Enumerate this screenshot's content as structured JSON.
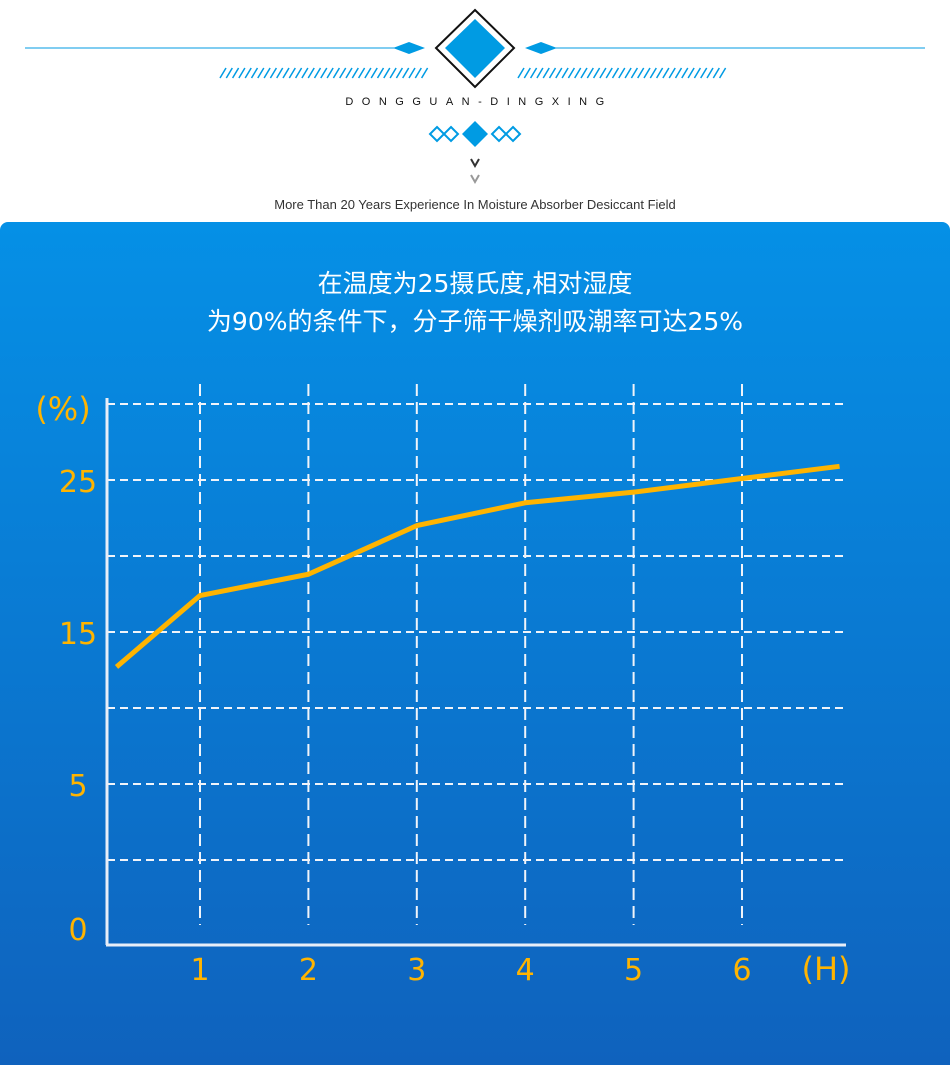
{
  "header": {
    "brand": "DONGGUAN-DINGXING",
    "tagline": "More Than 20 Years Experience In Moisture Absorber Desiccant Field",
    "accent": "#009be3"
  },
  "panel": {
    "title_line1": "在温度为25摄氏度,相对湿度",
    "title_line2": "为90%的条件下，分子筛干燥剂吸潮率可达25%"
  },
  "chart_data": {
    "type": "line",
    "title": "",
    "xlabel": "(H)",
    "ylabel": "(%)",
    "x_ticks": [
      "1",
      "2",
      "3",
      "4",
      "5",
      "6"
    ],
    "y_ticks": [
      "0",
      "5",
      "15",
      "25"
    ],
    "ylim": [
      0,
      30
    ],
    "xlim": [
      0,
      7
    ],
    "grid": true,
    "line_color": "#ffb400",
    "series": [
      {
        "x": [
          0.23,
          1,
          2,
          3,
          4,
          5,
          6,
          6.9
        ],
        "y": [
          12.7,
          17.4,
          18.8,
          22.0,
          23.5,
          24.2,
          25.1,
          25.9
        ]
      }
    ]
  }
}
